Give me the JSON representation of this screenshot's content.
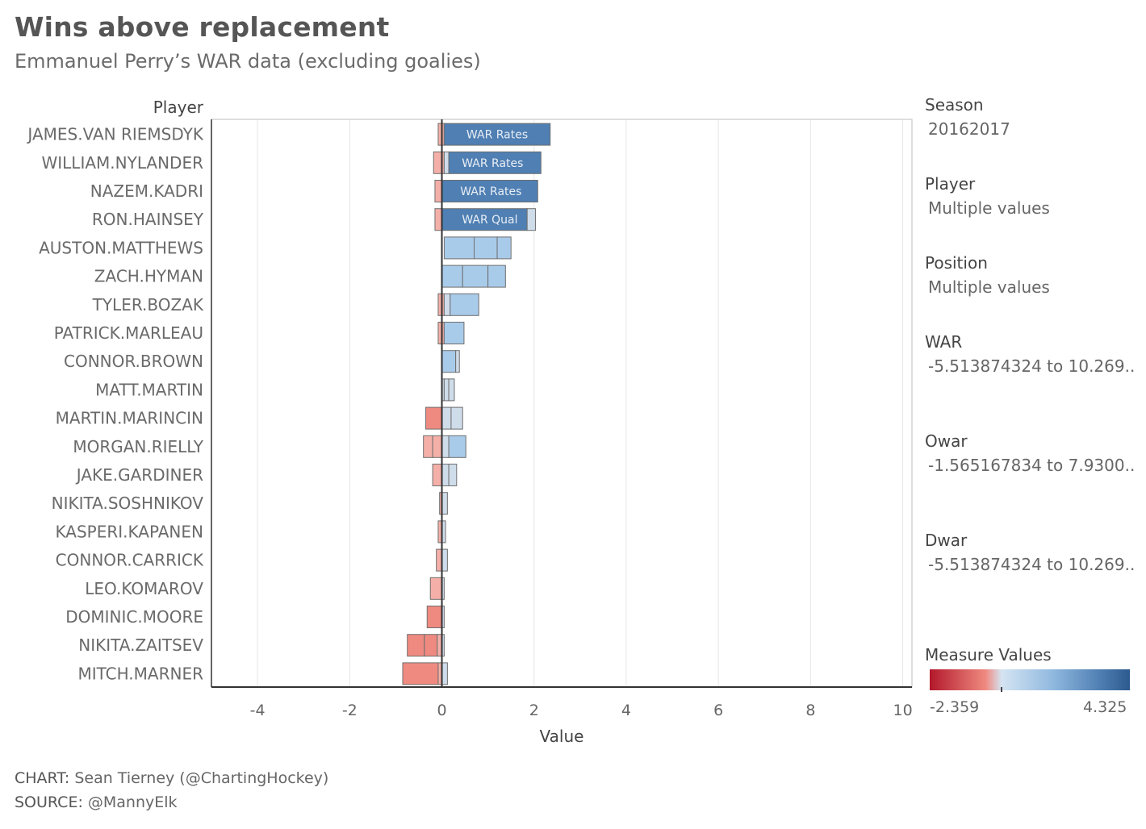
{
  "header": {
    "title": "Wins above replacement",
    "subtitle": "Emmanuel Perry’s WAR data (excluding goalies)"
  },
  "footer": {
    "chart_label": "CHART:",
    "chart_value": " Sean Tierney (@ChartingHockey)",
    "source_label": "SOURCE:",
    "source_value": " @MannyElk"
  },
  "filters": {
    "season": {
      "label": "Season",
      "value": "20162017"
    },
    "player": {
      "label": "Player",
      "value": "Multiple values"
    },
    "position": {
      "label": "Position",
      "value": "Multiple values"
    },
    "war": {
      "label": "WAR",
      "value": "-5.513874324 to 10.269.."
    },
    "owar": {
      "label": "Owar",
      "value": "-1.565167834 to 7.9300.."
    },
    "dwar": {
      "label": "Dwar",
      "value": "-5.513874324 to 10.269.."
    }
  },
  "legend": {
    "title": "Measure Values",
    "min_label": "-2.359",
    "max_label": "4.325",
    "min": -2.359,
    "max": 4.325
  },
  "colors": {
    "strong_blue": "#4f7fb3",
    "light_blue": "#a9cbea",
    "pale_blue": "#cfdcea",
    "light_red": "#ef8a80",
    "pale_red": "#f4b0a8",
    "axis": "#333333",
    "grid": "#e6e6e6"
  },
  "chart_data": {
    "type": "bar",
    "orientation": "horizontal",
    "row_header": "Player",
    "xlabel": "Value",
    "xlim": [
      -5,
      10.2
    ],
    "xticks": [
      -4,
      -2,
      0,
      2,
      4,
      6,
      8,
      10
    ],
    "players": [
      {
        "name": "JAMES.VAN RIEMSDYK",
        "label": "WAR Rates",
        "segments": [
          {
            "start": -0.08,
            "end": 0.05,
            "fill": "pale_red"
          },
          {
            "start": 0.05,
            "end": 2.35,
            "fill": "strong_blue"
          }
        ]
      },
      {
        "name": "WILLIAM.NYLANDER",
        "label": "WAR Rates",
        "segments": [
          {
            "start": -0.18,
            "end": 0.05,
            "fill": "pale_red"
          },
          {
            "start": 0.05,
            "end": 0.15,
            "fill": "pale_blue"
          },
          {
            "start": 0.15,
            "end": 2.15,
            "fill": "strong_blue"
          }
        ]
      },
      {
        "name": "NAZEM.KADRI",
        "label": "WAR Rates",
        "segments": [
          {
            "start": -0.15,
            "end": 0.0,
            "fill": "pale_red"
          },
          {
            "start": 0.0,
            "end": 2.08,
            "fill": "strong_blue"
          }
        ]
      },
      {
        "name": "RON.HAINSEY",
        "label": "WAR Qual",
        "segments": [
          {
            "start": -0.15,
            "end": 0.0,
            "fill": "pale_red"
          },
          {
            "start": 0.0,
            "end": 1.85,
            "fill": "strong_blue"
          },
          {
            "start": 1.85,
            "end": 2.03,
            "fill": "pale_blue"
          }
        ]
      },
      {
        "name": "AUSTON.MATTHEWS",
        "label": "",
        "segments": [
          {
            "start": 0.05,
            "end": 0.7,
            "fill": "light_blue"
          },
          {
            "start": 0.7,
            "end": 1.2,
            "fill": "light_blue"
          },
          {
            "start": 1.2,
            "end": 1.5,
            "fill": "light_blue"
          }
        ]
      },
      {
        "name": "ZACH.HYMAN",
        "label": "",
        "segments": [
          {
            "start": 0.0,
            "end": 0.45,
            "fill": "light_blue"
          },
          {
            "start": 0.45,
            "end": 1.0,
            "fill": "light_blue"
          },
          {
            "start": 1.0,
            "end": 1.38,
            "fill": "light_blue"
          }
        ]
      },
      {
        "name": "TYLER.BOZAK",
        "label": "",
        "segments": [
          {
            "start": -0.08,
            "end": 0.05,
            "fill": "pale_red"
          },
          {
            "start": 0.05,
            "end": 0.18,
            "fill": "pale_blue"
          },
          {
            "start": 0.18,
            "end": 0.8,
            "fill": "light_blue"
          }
        ]
      },
      {
        "name": "PATRICK.MARLEAU",
        "label": "",
        "segments": [
          {
            "start": -0.08,
            "end": 0.05,
            "fill": "pale_red"
          },
          {
            "start": 0.05,
            "end": 0.48,
            "fill": "light_blue"
          }
        ]
      },
      {
        "name": "CONNOR.BROWN",
        "label": "",
        "segments": [
          {
            "start": 0.0,
            "end": 0.3,
            "fill": "light_blue"
          },
          {
            "start": 0.3,
            "end": 0.38,
            "fill": "pale_blue"
          }
        ]
      },
      {
        "name": "MATT.MARTIN",
        "label": "",
        "segments": [
          {
            "start": 0.0,
            "end": 0.05,
            "fill": "pale_blue"
          },
          {
            "start": 0.05,
            "end": 0.15,
            "fill": "pale_blue"
          },
          {
            "start": 0.15,
            "end": 0.27,
            "fill": "pale_blue"
          }
        ]
      },
      {
        "name": "MARTIN.MARINCIN",
        "label": "",
        "segments": [
          {
            "start": -0.35,
            "end": 0.0,
            "fill": "light_red"
          },
          {
            "start": 0.0,
            "end": 0.2,
            "fill": "pale_blue"
          },
          {
            "start": 0.2,
            "end": 0.45,
            "fill": "pale_blue"
          }
        ]
      },
      {
        "name": "MORGAN.RIELLY",
        "label": "",
        "segments": [
          {
            "start": -0.4,
            "end": -0.2,
            "fill": "pale_red"
          },
          {
            "start": -0.2,
            "end": 0.0,
            "fill": "pale_red"
          },
          {
            "start": 0.0,
            "end": 0.15,
            "fill": "pale_blue"
          },
          {
            "start": 0.15,
            "end": 0.52,
            "fill": "light_blue"
          }
        ]
      },
      {
        "name": "JAKE.GARDINER",
        "label": "",
        "segments": [
          {
            "start": -0.2,
            "end": 0.0,
            "fill": "pale_red"
          },
          {
            "start": 0.0,
            "end": 0.15,
            "fill": "pale_blue"
          },
          {
            "start": 0.15,
            "end": 0.32,
            "fill": "pale_blue"
          }
        ]
      },
      {
        "name": "NIKITA.SOSHNIKOV",
        "label": "",
        "segments": [
          {
            "start": -0.05,
            "end": 0.0,
            "fill": "pale_red"
          },
          {
            "start": 0.0,
            "end": 0.12,
            "fill": "pale_blue"
          }
        ]
      },
      {
        "name": "KASPERI.KAPANEN",
        "label": "",
        "segments": [
          {
            "start": -0.08,
            "end": 0.0,
            "fill": "pale_red"
          },
          {
            "start": 0.0,
            "end": 0.08,
            "fill": "pale_blue"
          }
        ]
      },
      {
        "name": "CONNOR.CARRICK",
        "label": "",
        "segments": [
          {
            "start": -0.12,
            "end": 0.0,
            "fill": "pale_red"
          },
          {
            "start": 0.0,
            "end": 0.12,
            "fill": "pale_blue"
          }
        ]
      },
      {
        "name": "LEO.KOMAROV",
        "label": "",
        "segments": [
          {
            "start": -0.25,
            "end": 0.0,
            "fill": "pale_red"
          },
          {
            "start": 0.0,
            "end": 0.05,
            "fill": "pale_blue"
          }
        ]
      },
      {
        "name": "DOMINIC.MOORE",
        "label": "",
        "segments": [
          {
            "start": -0.32,
            "end": 0.0,
            "fill": "light_red"
          },
          {
            "start": 0.0,
            "end": 0.05,
            "fill": "pale_blue"
          }
        ]
      },
      {
        "name": "NIKITA.ZAITSEV",
        "label": "",
        "segments": [
          {
            "start": -0.75,
            "end": -0.38,
            "fill": "light_red"
          },
          {
            "start": -0.38,
            "end": -0.1,
            "fill": "light_red"
          },
          {
            "start": -0.1,
            "end": 0.0,
            "fill": "pale_red"
          },
          {
            "start": 0.0,
            "end": 0.05,
            "fill": "pale_blue"
          }
        ]
      },
      {
        "name": "MITCH.MARNER",
        "label": "",
        "segments": [
          {
            "start": -0.85,
            "end": -0.08,
            "fill": "light_red"
          },
          {
            "start": -0.08,
            "end": 0.0,
            "fill": "pale_red"
          },
          {
            "start": 0.0,
            "end": 0.12,
            "fill": "pale_blue"
          }
        ]
      }
    ]
  }
}
